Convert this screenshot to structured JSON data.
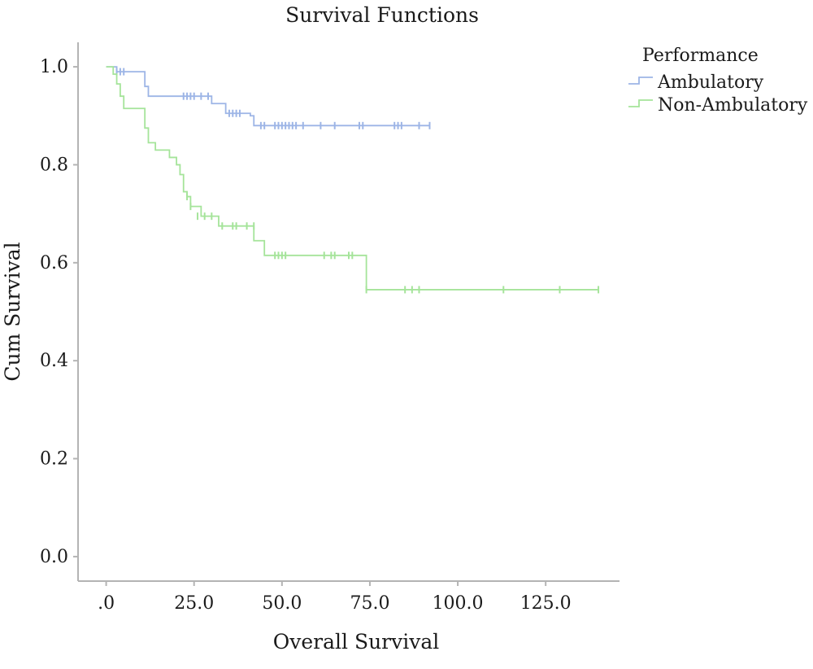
{
  "chart_data": {
    "type": "line",
    "title": "Survival Functions",
    "xlabel": "Overall Survival",
    "ylabel": "Cum Survival",
    "xlim": [
      -8,
      146
    ],
    "ylim": [
      -0.05,
      1.05
    ],
    "x_ticks": [
      0,
      25,
      50,
      75,
      100,
      125
    ],
    "x_tick_labels": [
      ".0",
      "25.0",
      "50.0",
      "75.0",
      "100.0",
      "125.0"
    ],
    "y_ticks": [
      0.0,
      0.2,
      0.4,
      0.6,
      0.8,
      1.0
    ],
    "y_tick_labels": [
      "0.0",
      "0.2",
      "0.4",
      "0.6",
      "0.8",
      "1.0"
    ],
    "grid": false,
    "legend": {
      "title": "Performance",
      "position": "top-right"
    },
    "series": [
      {
        "name": "Ambulatory",
        "color": "#9db5e6",
        "steps": [
          [
            0,
            1.0
          ],
          [
            3,
            0.99
          ],
          [
            11,
            0.96
          ],
          [
            12,
            0.94
          ],
          [
            30,
            0.925
          ],
          [
            34,
            0.905
          ],
          [
            41,
            0.9
          ],
          [
            42,
            0.88
          ]
        ],
        "end_x": 92,
        "censored": [
          [
            3,
            0.99
          ],
          [
            4,
            0.99
          ],
          [
            5,
            0.99
          ],
          [
            22,
            0.94
          ],
          [
            23,
            0.94
          ],
          [
            24,
            0.94
          ],
          [
            25,
            0.94
          ],
          [
            27,
            0.94
          ],
          [
            29,
            0.94
          ],
          [
            35,
            0.905
          ],
          [
            36,
            0.905
          ],
          [
            37,
            0.905
          ],
          [
            38,
            0.905
          ],
          [
            44,
            0.88
          ],
          [
            45,
            0.88
          ],
          [
            48,
            0.88
          ],
          [
            49,
            0.88
          ],
          [
            50,
            0.88
          ],
          [
            51,
            0.88
          ],
          [
            52,
            0.88
          ],
          [
            53,
            0.88
          ],
          [
            54,
            0.88
          ],
          [
            56,
            0.88
          ],
          [
            61,
            0.88
          ],
          [
            65,
            0.88
          ],
          [
            72,
            0.88
          ],
          [
            73,
            0.88
          ],
          [
            82,
            0.88
          ],
          [
            83,
            0.88
          ],
          [
            84,
            0.88
          ],
          [
            89,
            0.88
          ],
          [
            92,
            0.88
          ]
        ]
      },
      {
        "name": "Non-Ambulatory",
        "color": "#a5e49a",
        "steps": [
          [
            0,
            1.0
          ],
          [
            2,
            0.985
          ],
          [
            3,
            0.965
          ],
          [
            4,
            0.94
          ],
          [
            5,
            0.915
          ],
          [
            11,
            0.875
          ],
          [
            12,
            0.845
          ],
          [
            14,
            0.83
          ],
          [
            18,
            0.815
          ],
          [
            20,
            0.8
          ],
          [
            21,
            0.78
          ],
          [
            22,
            0.745
          ],
          [
            23,
            0.735
          ],
          [
            24,
            0.715
          ],
          [
            27,
            0.695
          ],
          [
            32,
            0.675
          ],
          [
            42,
            0.645
          ],
          [
            45,
            0.615
          ],
          [
            74,
            0.545
          ]
        ],
        "end_x": 140,
        "censored": [
          [
            23,
            0.735
          ],
          [
            24,
            0.715
          ],
          [
            26,
            0.695
          ],
          [
            28,
            0.695
          ],
          [
            30,
            0.695
          ],
          [
            33,
            0.675
          ],
          [
            36,
            0.675
          ],
          [
            37,
            0.675
          ],
          [
            40,
            0.675
          ],
          [
            42,
            0.675
          ],
          [
            48,
            0.615
          ],
          [
            49,
            0.615
          ],
          [
            50,
            0.615
          ],
          [
            51,
            0.615
          ],
          [
            62,
            0.615
          ],
          [
            64,
            0.615
          ],
          [
            65,
            0.615
          ],
          [
            69,
            0.615
          ],
          [
            70,
            0.615
          ],
          [
            74,
            0.545
          ],
          [
            85,
            0.545
          ],
          [
            87,
            0.545
          ],
          [
            89,
            0.545
          ],
          [
            113,
            0.545
          ],
          [
            129,
            0.545
          ],
          [
            140,
            0.545
          ]
        ]
      }
    ]
  }
}
